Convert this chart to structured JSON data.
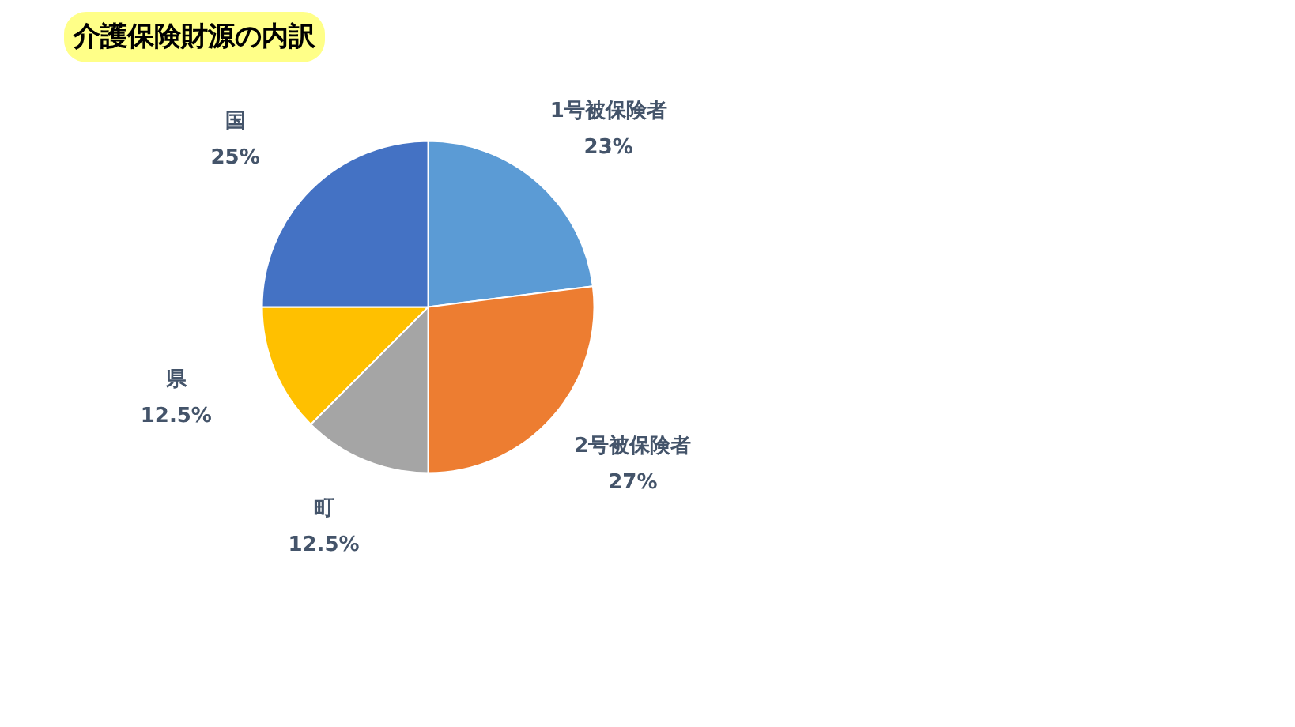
{
  "chart_data": {
    "type": "pie",
    "title": "介護保険財源の内訳",
    "categories": [
      "1号被保険者",
      "2号被保険者",
      "町",
      "県",
      "国"
    ],
    "values": [
      23,
      27,
      12.5,
      12.5,
      25
    ],
    "value_labels": [
      "23%",
      "27%",
      "12.5%",
      "12.5%",
      "25%"
    ],
    "colors": [
      "#5b9bd5",
      "#ed7d31",
      "#a5a5a5",
      "#ffc000",
      "#4472c4"
    ]
  }
}
